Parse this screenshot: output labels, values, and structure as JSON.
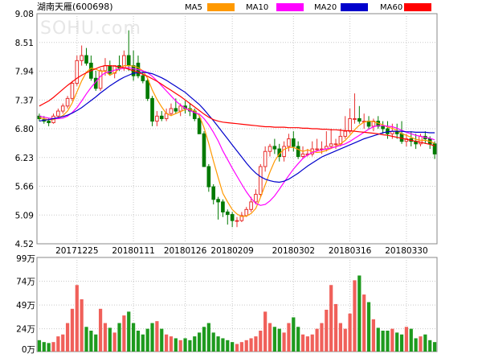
{
  "chart_data": {
    "type": "candlestick",
    "title": "湖南天雁(600698)",
    "watermark": "SOHU.com",
    "legend": [
      {
        "name": "MA5",
        "color": "#ff9900"
      },
      {
        "name": "MA10",
        "color": "#ff00ff"
      },
      {
        "name": "MA20",
        "color": "#0000cc"
      },
      {
        "name": "MA60",
        "color": "#ff0000"
      }
    ],
    "colors": {
      "up": "#e8302e",
      "down": "#007a00",
      "grid": "#c9c9c9"
    },
    "price_axis": {
      "ticks": [
        "9.08",
        "8.51",
        "7.94",
        "7.37",
        "6.80",
        "6.23",
        "5.66",
        "5.09",
        "4.52"
      ],
      "min": 4.52,
      "max": 9.08
    },
    "volume_axis": {
      "ticks": [
        "99万",
        "74万",
        "49万",
        "24万",
        "0万"
      ],
      "max": 99
    },
    "x_labels": [
      {
        "label": "20171225",
        "index": 8
      },
      {
        "label": "20180111",
        "index": 20
      },
      {
        "label": "20180126",
        "index": 31
      },
      {
        "label": "20180209",
        "index": 41
      },
      {
        "label": "20180302",
        "index": 54
      },
      {
        "label": "20180316",
        "index": 66
      },
      {
        "label": "20180330",
        "index": 78
      }
    ],
    "open": [
      7.05,
      6.98,
      6.95,
      6.92,
      7.05,
      7.15,
      7.25,
      7.4,
      7.7,
      8.15,
      8.25,
      8.1,
      7.8,
      7.6,
      7.95,
      8.05,
      7.9,
      8.05,
      8.0,
      8.25,
      8.05,
      8.1,
      7.85,
      7.75,
      7.4,
      6.95,
      7.05,
      7.0,
      7.1,
      7.2,
      7.15,
      7.25,
      7.2,
      7.15,
      7.0,
      6.7,
      6.05,
      5.65,
      5.4,
      5.35,
      5.15,
      5.1,
      4.98,
      4.98,
      5.08,
      5.2,
      5.35,
      5.5,
      6.05,
      6.35,
      6.45,
      6.4,
      6.25,
      6.45,
      6.6,
      6.45,
      6.25,
      6.3,
      6.3,
      6.4,
      6.4,
      6.4,
      6.45,
      6.5,
      6.5,
      6.65,
      6.75,
      7.0,
      7.0,
      6.95,
      6.95,
      6.85,
      6.95,
      6.85,
      6.8,
      6.7,
      6.75,
      6.7,
      6.55,
      6.6,
      6.55,
      6.5,
      6.65,
      6.6,
      6.5
    ],
    "high": [
      7.1,
      7.05,
      7.0,
      7.1,
      7.2,
      7.3,
      7.45,
      7.75,
      8.25,
      8.45,
      8.4,
      8.25,
      7.95,
      8.0,
      8.2,
      8.15,
      8.05,
      8.25,
      8.35,
      8.75,
      8.35,
      8.25,
      7.95,
      7.8,
      7.45,
      7.15,
      7.15,
      7.2,
      7.3,
      7.4,
      7.3,
      7.35,
      7.3,
      7.2,
      7.05,
      6.75,
      6.1,
      5.7,
      5.45,
      5.4,
      5.2,
      5.15,
      5.05,
      5.15,
      5.25,
      5.45,
      5.6,
      6.1,
      6.45,
      6.5,
      6.6,
      6.5,
      6.55,
      6.7,
      6.75,
      6.55,
      6.45,
      6.4,
      6.55,
      6.6,
      6.55,
      6.75,
      6.8,
      6.6,
      6.8,
      7.05,
      7.2,
      7.5,
      7.25,
      7.1,
      7.05,
      7.0,
      7.05,
      6.95,
      6.95,
      6.9,
      6.9,
      6.95,
      6.7,
      6.75,
      6.7,
      6.7,
      6.75,
      6.65,
      6.55
    ],
    "low": [
      6.95,
      6.9,
      6.85,
      6.9,
      7.0,
      7.1,
      7.2,
      7.35,
      7.65,
      8.05,
      8.05,
      7.75,
      7.55,
      7.55,
      7.85,
      7.85,
      7.8,
      7.95,
      7.95,
      7.95,
      7.75,
      7.8,
      7.7,
      7.35,
      6.85,
      6.85,
      6.95,
      6.95,
      7.05,
      7.1,
      7.05,
      7.1,
      7.05,
      6.95,
      6.7,
      6.05,
      5.55,
      5.3,
      5.0,
      5.05,
      4.9,
      4.85,
      4.85,
      4.95,
      5.05,
      5.15,
      5.3,
      5.45,
      5.95,
      6.25,
      6.3,
      6.15,
      6.15,
      6.35,
      6.35,
      6.2,
      6.2,
      6.25,
      6.25,
      6.35,
      6.3,
      6.35,
      6.4,
      6.4,
      6.45,
      6.6,
      6.7,
      6.9,
      6.9,
      6.8,
      6.8,
      6.75,
      6.8,
      6.7,
      6.6,
      6.6,
      6.6,
      6.5,
      6.45,
      6.45,
      6.4,
      6.45,
      6.5,
      6.4,
      6.2
    ],
    "close": [
      7.0,
      6.95,
      6.92,
      7.05,
      7.15,
      7.25,
      7.4,
      7.7,
      8.15,
      8.25,
      8.1,
      7.8,
      7.6,
      7.95,
      8.05,
      7.9,
      8.05,
      8.0,
      8.25,
      8.05,
      7.85,
      7.85,
      7.75,
      7.4,
      6.95,
      7.05,
      7.0,
      7.1,
      7.2,
      7.15,
      7.25,
      7.2,
      7.15,
      7.0,
      6.7,
      6.05,
      5.65,
      5.4,
      5.35,
      5.15,
      5.1,
      4.98,
      4.98,
      5.08,
      5.2,
      5.35,
      5.5,
      6.05,
      6.35,
      6.45,
      6.4,
      6.25,
      6.45,
      6.6,
      6.45,
      6.25,
      6.3,
      6.3,
      6.4,
      6.4,
      6.4,
      6.45,
      6.5,
      6.5,
      6.65,
      6.75,
      7.0,
      7.0,
      6.95,
      6.95,
      6.85,
      6.95,
      6.85,
      6.8,
      6.7,
      6.75,
      6.7,
      6.55,
      6.6,
      6.55,
      6.5,
      6.65,
      6.6,
      6.5,
      6.3
    ],
    "volume": [
      12,
      10,
      9,
      10,
      16,
      18,
      30,
      45,
      70,
      55,
      26,
      22,
      18,
      45,
      30,
      25,
      20,
      30,
      38,
      42,
      30,
      22,
      18,
      24,
      30,
      32,
      24,
      18,
      16,
      14,
      12,
      14,
      12,
      16,
      20,
      26,
      30,
      20,
      16,
      14,
      12,
      10,
      8,
      10,
      12,
      14,
      16,
      22,
      42,
      30,
      26,
      24,
      20,
      30,
      36,
      26,
      18,
      16,
      18,
      24,
      30,
      44,
      70,
      50,
      30,
      24,
      40,
      75,
      80,
      60,
      52,
      34,
      25,
      22,
      22,
      24,
      20,
      18,
      26,
      24,
      14,
      16,
      18,
      12,
      10
    ],
    "ma_lines": {
      "MA5": [
        7.02,
        7.0,
        6.98,
        6.98,
        7.01,
        7.06,
        7.15,
        7.31,
        7.53,
        7.75,
        7.92,
        8.0,
        7.98,
        7.94,
        7.94,
        7.86,
        7.91,
        7.99,
        8.05,
        8.05,
        8.04,
        8.01,
        7.95,
        7.8,
        7.57,
        7.38,
        7.23,
        7.1,
        7.06,
        7.1,
        7.14,
        7.18,
        7.19,
        7.15,
        7.06,
        6.82,
        6.51,
        6.16,
        5.83,
        5.52,
        5.35,
        5.2,
        5.11,
        5.06,
        5.07,
        5.12,
        5.22,
        5.44,
        5.69,
        5.94,
        6.16,
        6.3,
        6.39,
        6.43,
        6.43,
        6.39,
        6.35,
        6.38,
        6.35,
        6.33,
        6.34,
        6.37,
        6.41,
        6.45,
        6.5,
        6.57,
        6.67,
        6.78,
        6.87,
        6.93,
        6.95,
        6.94,
        6.91,
        6.88,
        6.83,
        6.81,
        6.77,
        6.7,
        6.67,
        6.63,
        6.59,
        6.57,
        6.57,
        6.55,
        6.51
      ],
      "MA10": [
        7.05,
        7.03,
        7.01,
        7.0,
        7.0,
        7.01,
        7.05,
        7.12,
        7.22,
        7.35,
        7.49,
        7.62,
        7.73,
        7.84,
        7.91,
        7.93,
        7.96,
        7.98,
        8.0,
        8.01,
        7.99,
        7.97,
        7.95,
        7.91,
        7.84,
        7.75,
        7.65,
        7.55,
        7.45,
        7.35,
        7.27,
        7.21,
        7.16,
        7.12,
        7.09,
        7.0,
        6.88,
        6.73,
        6.56,
        6.36,
        6.19,
        6.02,
        5.86,
        5.7,
        5.55,
        5.42,
        5.32,
        5.28,
        5.3,
        5.37,
        5.47,
        5.6,
        5.74,
        5.87,
        6.0,
        6.11,
        6.21,
        6.28,
        6.33,
        6.36,
        6.38,
        6.4,
        6.42,
        6.44,
        6.47,
        6.5,
        6.55,
        6.61,
        6.67,
        6.73,
        6.79,
        6.84,
        6.86,
        6.86,
        6.85,
        6.84,
        6.81,
        6.77,
        6.73,
        6.7,
        6.67,
        6.65,
        6.63,
        6.61,
        6.58
      ],
      "MA20": [
        6.95,
        6.97,
        6.98,
        7.0,
        7.02,
        7.04,
        7.07,
        7.11,
        7.16,
        7.22,
        7.29,
        7.36,
        7.43,
        7.51,
        7.58,
        7.65,
        7.71,
        7.77,
        7.82,
        7.86,
        7.9,
        7.91,
        7.92,
        7.91,
        7.89,
        7.85,
        7.81,
        7.76,
        7.7,
        7.64,
        7.58,
        7.52,
        7.44,
        7.36,
        7.28,
        7.18,
        7.07,
        6.96,
        6.84,
        6.72,
        6.6,
        6.48,
        6.36,
        6.24,
        6.12,
        6.01,
        5.92,
        5.85,
        5.8,
        5.77,
        5.75,
        5.74,
        5.76,
        5.8,
        5.86,
        5.92,
        5.99,
        6.06,
        6.12,
        6.18,
        6.24,
        6.28,
        6.32,
        6.36,
        6.4,
        6.44,
        6.48,
        6.52,
        6.56,
        6.6,
        6.63,
        6.66,
        6.69,
        6.72,
        6.74,
        6.75,
        6.75,
        6.75,
        6.74,
        6.74,
        6.73,
        6.73,
        6.73,
        6.72,
        6.72
      ],
      "MA60": [
        7.25,
        7.3,
        7.35,
        7.42,
        7.5,
        7.58,
        7.66,
        7.73,
        7.8,
        7.86,
        7.91,
        7.95,
        7.99,
        8.03,
        8.05,
        8.05,
        8.04,
        8.03,
        8.01,
        7.98,
        7.95,
        7.92,
        7.88,
        7.84,
        7.79,
        7.74,
        7.68,
        7.62,
        7.56,
        7.5,
        7.44,
        7.37,
        7.3,
        7.23,
        7.16,
        7.09,
        7.03,
        6.98,
        6.95,
        6.93,
        6.92,
        6.91,
        6.9,
        6.89,
        6.88,
        6.87,
        6.86,
        6.85,
        6.84,
        6.84,
        6.83,
        6.83,
        6.83,
        6.82,
        6.82,
        6.82,
        6.81,
        6.81,
        6.8,
        6.8,
        6.79,
        6.79,
        6.78,
        6.78,
        6.77,
        6.76,
        6.76,
        6.75,
        6.74,
        6.73,
        6.72,
        6.71,
        6.7,
        6.68,
        6.67,
        6.65,
        6.63,
        6.61,
        6.59,
        6.57,
        6.55,
        6.53,
        6.51,
        6.49,
        6.46
      ]
    }
  }
}
